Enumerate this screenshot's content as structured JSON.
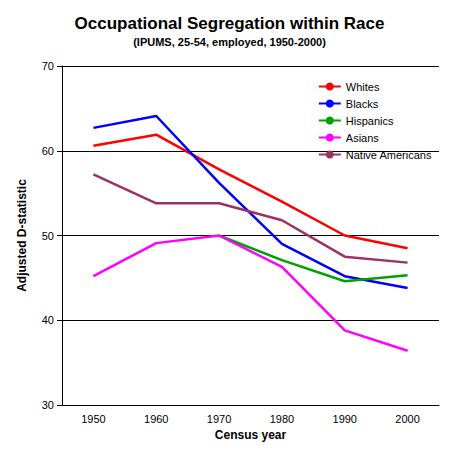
{
  "chart_data": {
    "type": "line",
    "title": "Occupational Segregation within Race",
    "subtitle": "(IPUMS, 25-54, employed, 1950-2000)",
    "x_label": "Census year",
    "y_label": "Adjusted D-statistic",
    "categories": [
      "1950",
      "1960",
      "1970",
      "1980",
      "1990",
      "2000"
    ],
    "series": [
      {
        "name": "Whites",
        "color": "#ff0000",
        "values": [
          60.6,
          61.9,
          57.8,
          54.0,
          50.0,
          48.5
        ]
      },
      {
        "name": "Blacks",
        "color": "#0000ff",
        "values": [
          62.7,
          64.1,
          56.2,
          49.0,
          45.2,
          43.8
        ]
      },
      {
        "name": "Hispanics",
        "color": "#00a000",
        "values": [
          null,
          null,
          50.0,
          47.1,
          44.6,
          45.3
        ]
      },
      {
        "name": "Asians",
        "color": "#ff00ff",
        "values": [
          45.2,
          49.1,
          50.0,
          46.3,
          38.8,
          36.4
        ]
      },
      {
        "name": "Native Americans",
        "color": "#993366",
        "values": [
          57.2,
          53.8,
          53.8,
          51.8,
          47.5,
          46.8
        ]
      }
    ],
    "ylim": [
      30,
      70
    ],
    "yticks": [
      30,
      40,
      50,
      60,
      70
    ],
    "grid": true,
    "legend": "top-right",
    "marker": "none",
    "line_style": "solid"
  }
}
